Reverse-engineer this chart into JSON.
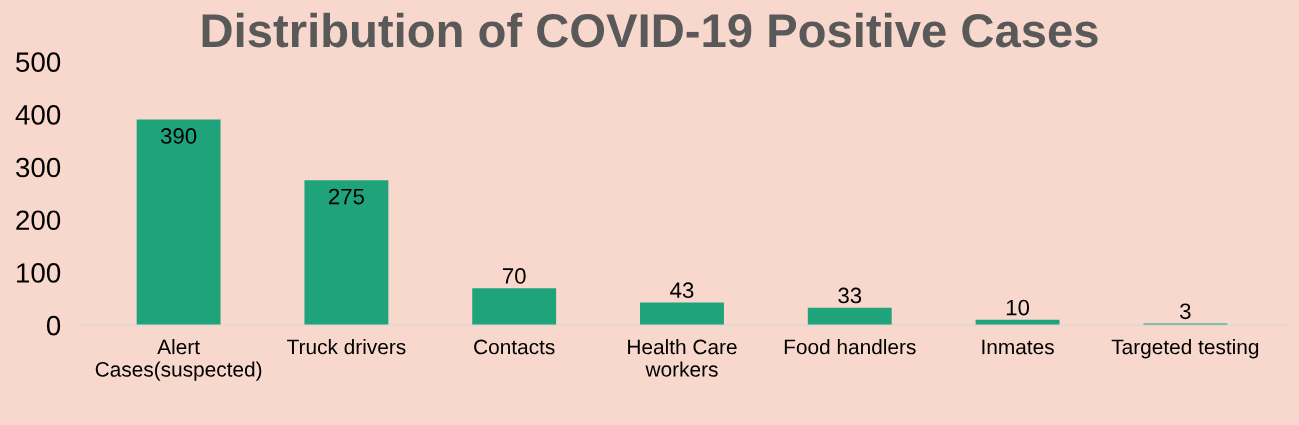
{
  "chart_data": {
    "type": "bar",
    "title": "Distribution of COVID-19 Positive Cases",
    "categories": [
      "Alert\nCases(suspected)",
      "Truck drivers",
      "Contacts",
      "Health Care\nworkers",
      "Food handlers",
      "Inmates",
      "Targeted testing"
    ],
    "values": [
      390,
      275,
      70,
      43,
      33,
      10,
      3
    ],
    "color": "#1fa37a",
    "data_labels": true,
    "grid": false,
    "legend": false,
    "ylim": [
      0,
      500
    ],
    "yticks": [
      0,
      100,
      200,
      300,
      400,
      500
    ]
  }
}
